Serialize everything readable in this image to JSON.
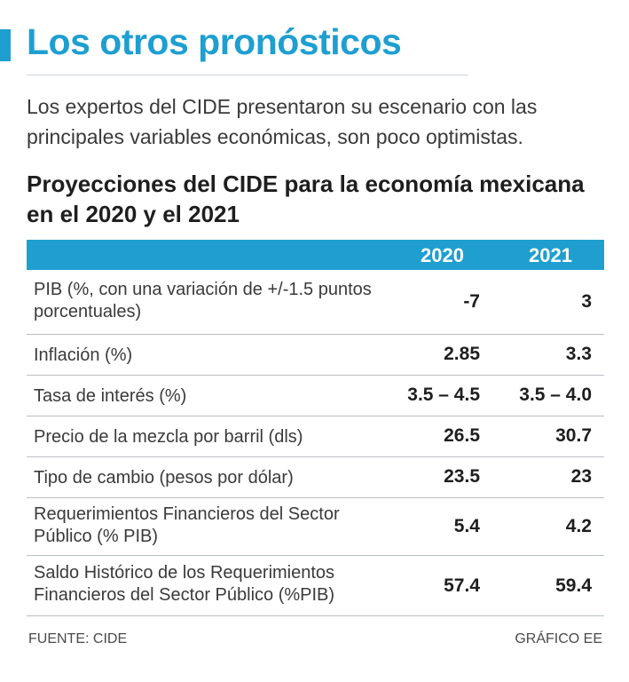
{
  "header": {
    "title": "Los otros pronósticos",
    "subtitle": "Los expertos del CIDE presentaron su escenario con las principales variables económicas, son poco optimistas."
  },
  "table": {
    "title": "Proyecciones del CIDE para la economía mexicana en el 2020 y el 2021",
    "columns": [
      "2020",
      "2021"
    ],
    "rows": [
      {
        "label": "PIB (%, con una variación de +/-1.5 puntos porcentuales)",
        "v2020": "-7",
        "v2021": "3"
      },
      {
        "label": "Inflación (%)",
        "v2020": "2.85",
        "v2021": "3.3"
      },
      {
        "label": "Tasa de interés (%)",
        "v2020": "3.5 – 4.5",
        "v2021": "3.5 – 4.0"
      },
      {
        "label": "Precio de la mezcla por barril (dls)",
        "v2020": "26.5",
        "v2021": "30.7"
      },
      {
        "label": "Tipo de cambio (pesos por dólar)",
        "v2020": "23.5",
        "v2021": "23"
      },
      {
        "label": "Requerimientos Financieros del Sector Público (% PIB)",
        "v2020": "5.4",
        "v2021": "4.2"
      },
      {
        "label": "Saldo Histórico de los Requerimientos Financieros del Sector Público (%PIB)",
        "v2020": "57.4",
        "v2021": "59.4"
      }
    ]
  },
  "footer": {
    "source": "FUENTE: CIDE",
    "credit": "GRÁFICO EE"
  },
  "colors": {
    "accent": "#1e9fd0",
    "rule": "#b9bfc3"
  }
}
